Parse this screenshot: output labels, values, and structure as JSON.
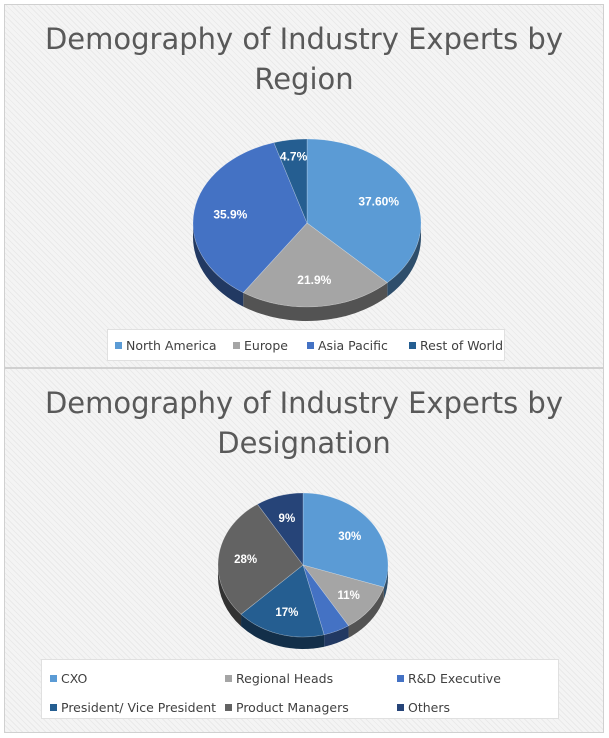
{
  "chart_data": [
    {
      "type": "pie",
      "title": "Demography of Industry Experts by Region",
      "title_lines": [
        "Demography of Industry Experts by",
        "Region"
      ],
      "categories": [
        "North America",
        "Europe",
        "Asia Pacific",
        "Rest of World"
      ],
      "values": [
        37.6,
        21.9,
        35.9,
        4.7
      ],
      "data_labels": [
        "37.60%",
        "21.9%",
        "35.9%",
        "4.7%"
      ],
      "colors": [
        "#5b9bd5",
        "#a5a5a5",
        "#4472c4",
        "#255e91"
      ],
      "legend_position": "bottom",
      "style": "3d"
    },
    {
      "type": "pie",
      "title": "Demography of Industry Experts by Designation",
      "title_lines": [
        "Demography of Industry Experts by",
        "Designation"
      ],
      "categories": [
        "CXO",
        "Regional Heads",
        "R&D Executive",
        "President/ Vice President",
        "Product Managers",
        "Others"
      ],
      "values": [
        30,
        11,
        5,
        17,
        28,
        9
      ],
      "data_labels": [
        "30%",
        "11%",
        "",
        "17%",
        "28%",
        "9%"
      ],
      "colors": [
        "#5b9bd5",
        "#a5a5a5",
        "#4472c4",
        "#255e91",
        "#636363",
        "#264478"
      ],
      "legend_position": "bottom",
      "style": "3d"
    }
  ]
}
